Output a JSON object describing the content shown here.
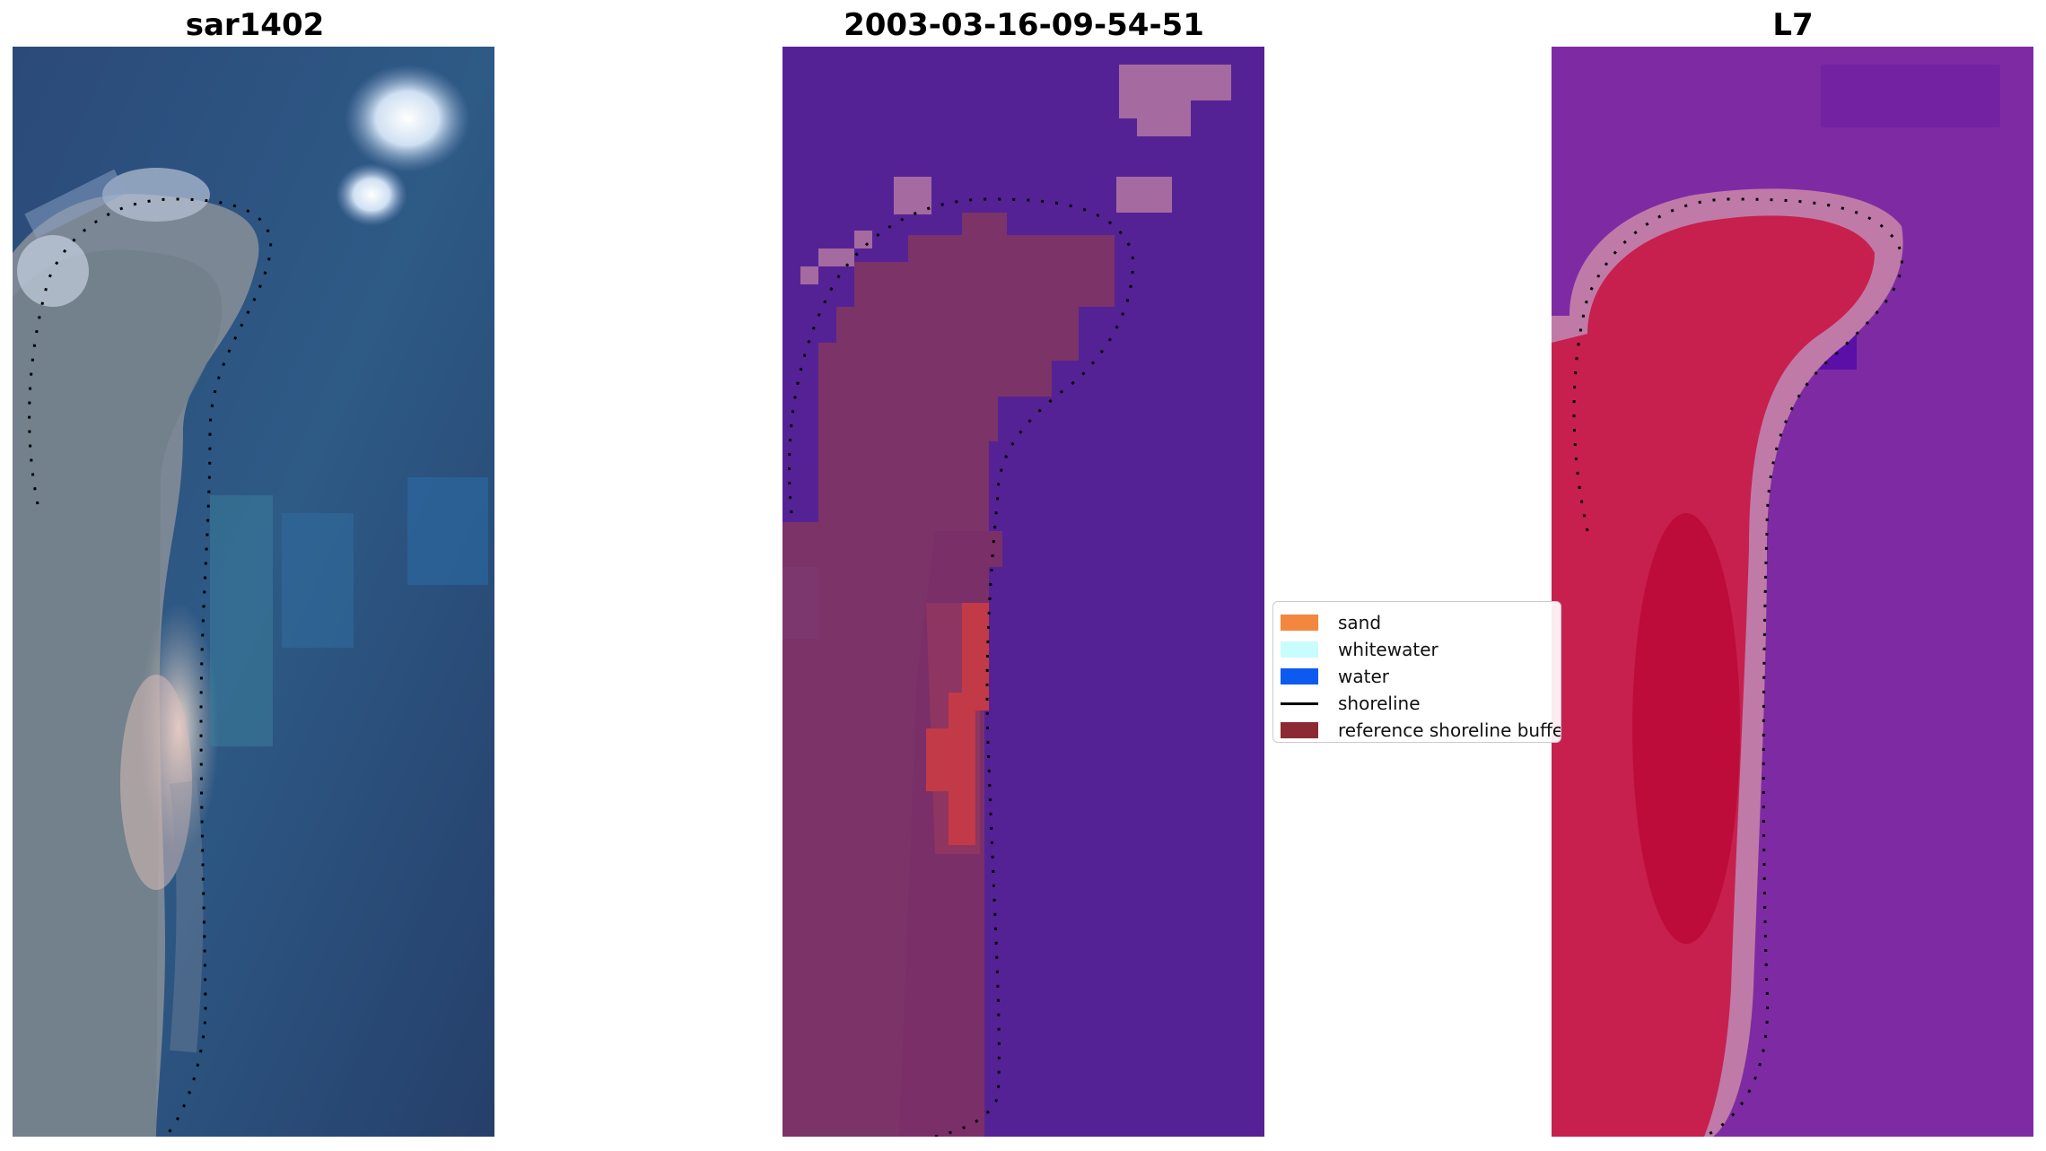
{
  "panels": [
    {
      "title": "sar1402",
      "image": "rgb-satellite-view"
    },
    {
      "title": "2003-03-16-09-54-51",
      "image": "classified-overlay"
    },
    {
      "title": "L7",
      "image": "probability-map"
    }
  ],
  "legend": {
    "items": [
      {
        "label": "sand",
        "color": "#f4873e",
        "kind": "patch"
      },
      {
        "label": "whitewater",
        "color": "#c9fcfc",
        "kind": "patch"
      },
      {
        "label": "water",
        "color": "#0d5af0",
        "kind": "patch"
      },
      {
        "label": "shoreline",
        "color": "#000000",
        "kind": "line"
      },
      {
        "label": "reference shoreline buffer",
        "color": "#8b2a32",
        "kind": "patch"
      }
    ]
  }
}
